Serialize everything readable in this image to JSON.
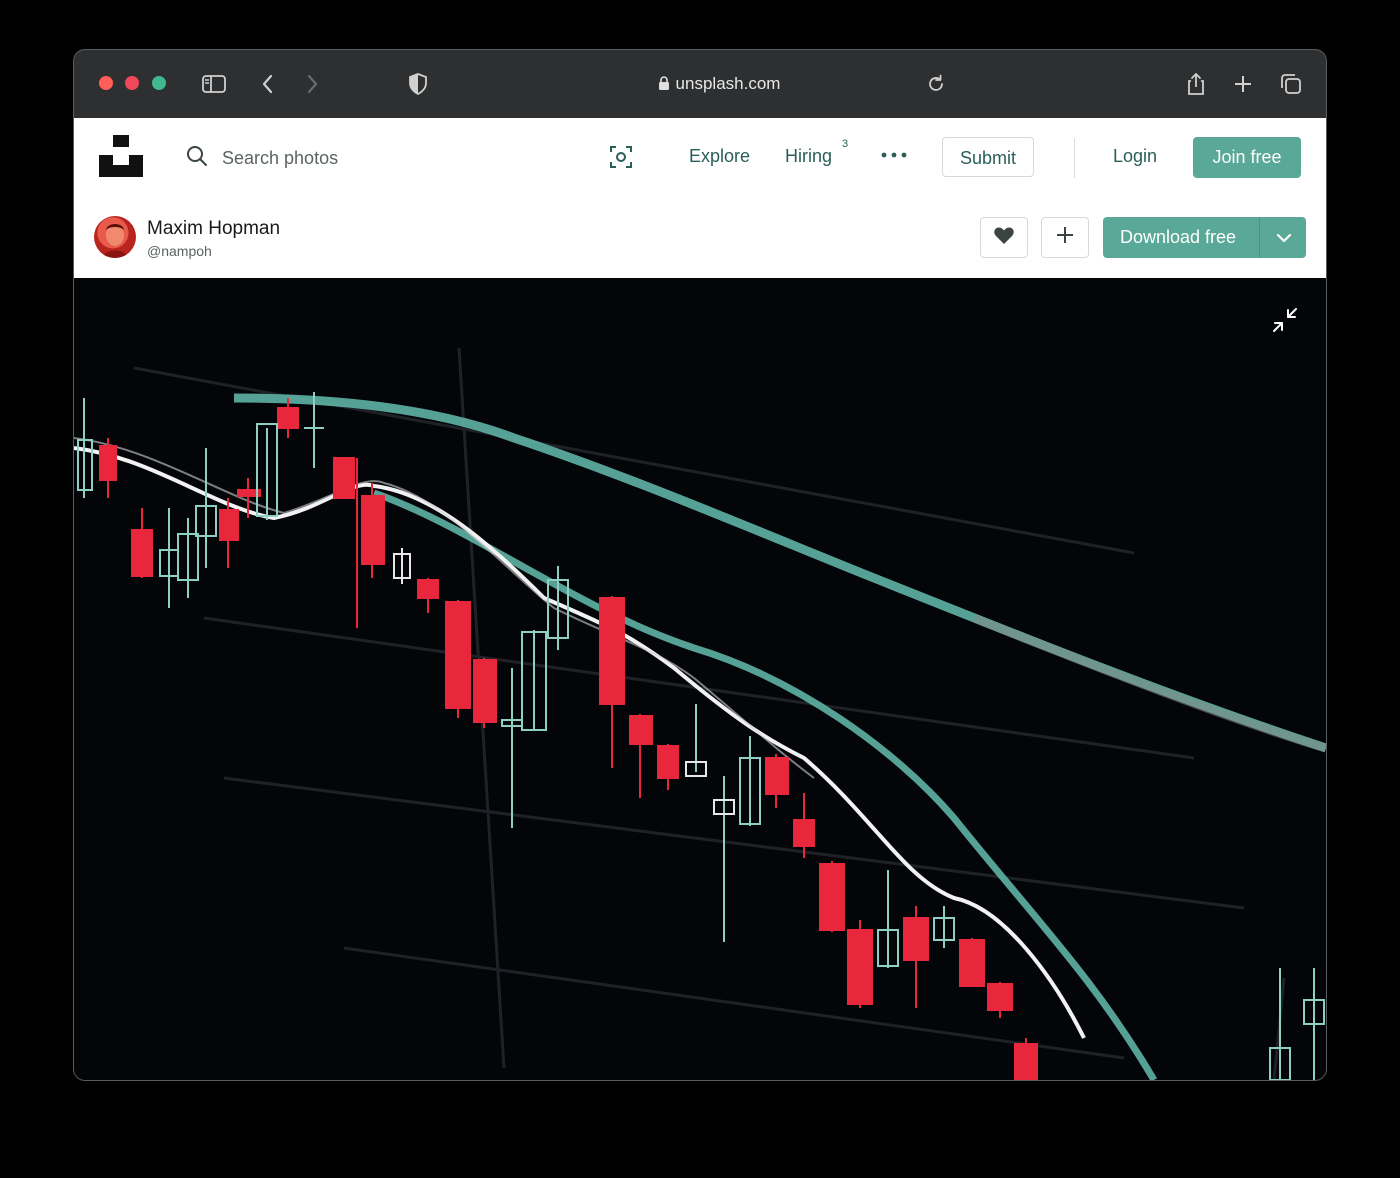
{
  "browser": {
    "address": "unsplash.com",
    "colors": {
      "close": "#ef4a5c",
      "minimize": "#ef4a5c",
      "maximize": "#3fb98f"
    },
    "icons": [
      "sidebar-icon",
      "back-icon",
      "forward-icon",
      "shield-icon",
      "lock-icon",
      "reload-icon",
      "share-icon",
      "new-tab-icon",
      "tabs-overview-icon"
    ]
  },
  "site_nav": {
    "search_placeholder": "Search photos",
    "explore_label": "Explore",
    "hiring_label": "Hiring",
    "hiring_badge": "3",
    "submit_label": "Submit",
    "login_label": "Login",
    "join_label": "Join free",
    "accent_color": "#5aa897"
  },
  "photo_header": {
    "author_name": "Maxim Hopman",
    "author_handle": "@nampoh",
    "download_label": "Download free"
  },
  "photo": {
    "subject": "candlestick chart on dark screen",
    "candle_colors": {
      "bearish": "#e8263c",
      "bullish": "#8ecfc3"
    }
  }
}
